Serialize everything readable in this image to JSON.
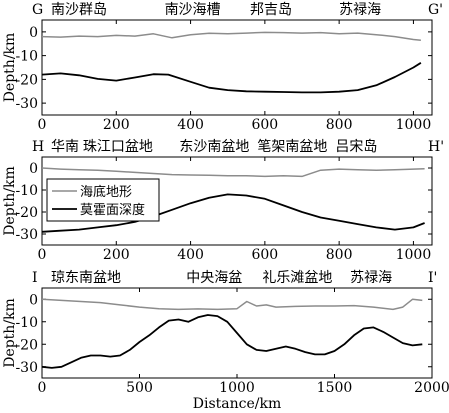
{
  "chart_data": [
    {
      "type": "line",
      "panel": "G-G'",
      "left_label": "G",
      "right_label": "G'",
      "top_labels": [
        {
          "text": "南沙群岛",
          "x": 0
        },
        {
          "text": "南沙海槽",
          "x": 330
        },
        {
          "text": "邦吉岛",
          "x": 560
        },
        {
          "text": "苏禄海",
          "x": 800
        }
      ],
      "ylabel": "Depth/km",
      "xlim": [
        0,
        1050
      ],
      "ylim": [
        -35,
        5
      ],
      "xticks": [
        0,
        200,
        400,
        600,
        800,
        1000
      ],
      "yticks": [
        0,
        -10,
        -20,
        -30
      ],
      "series": [
        {
          "color": "#8c8c8c",
          "x": [
            0,
            50,
            100,
            150,
            200,
            250,
            300,
            350,
            400,
            450,
            500,
            550,
            600,
            650,
            700,
            750,
            800,
            850,
            900,
            950,
            1000,
            1020
          ],
          "y": [
            -2,
            -2.2,
            -1.8,
            -2,
            -1.5,
            -1.8,
            -0.8,
            -2.5,
            -1.2,
            -0.6,
            -0.8,
            -0.5,
            -0.2,
            -0.3,
            -0.5,
            -0.3,
            -0.8,
            -0.5,
            -1.2,
            -2,
            -3.2,
            -3.5
          ]
        },
        {
          "color": "#000000",
          "x": [
            0,
            50,
            100,
            150,
            200,
            250,
            300,
            340,
            400,
            450,
            500,
            550,
            600,
            650,
            700,
            750,
            800,
            850,
            900,
            950,
            1000,
            1020
          ],
          "y": [
            -18,
            -17.5,
            -18.3,
            -19.8,
            -20.5,
            -19.2,
            -17.8,
            -18,
            -21,
            -23.5,
            -24.5,
            -25,
            -25.2,
            -25.3,
            -25.5,
            -25.5,
            -25.2,
            -24.5,
            -22.5,
            -19,
            -15,
            -13
          ]
        }
      ]
    },
    {
      "type": "line",
      "panel": "H-H'",
      "left_label": "H",
      "right_label": "H'",
      "top_labels": [
        {
          "text": "华南",
          "x": 0
        },
        {
          "text": "珠江口盆地",
          "x": 110
        },
        {
          "text": "东沙南盆地",
          "x": 370
        },
        {
          "text": "笔架南盆地",
          "x": 580
        },
        {
          "text": "吕宋岛",
          "x": 790
        }
      ],
      "ylabel": "Depth/km",
      "xlim": [
        0,
        1050
      ],
      "ylim": [
        -35,
        5
      ],
      "xticks": [
        0,
        200,
        400,
        600,
        800,
        1000
      ],
      "yticks": [
        0,
        -10,
        -20,
        -30
      ],
      "legend": {
        "position": "top-left",
        "entries": [
          "海底地形",
          "莫霍面深度"
        ]
      },
      "series": [
        {
          "name": "海底地形",
          "color": "#8c8c8c",
          "x": [
            0,
            50,
            100,
            150,
            200,
            250,
            300,
            350,
            400,
            450,
            500,
            550,
            600,
            650,
            700,
            750,
            800,
            850,
            900,
            950,
            1000,
            1030
          ],
          "y": [
            0,
            -0.5,
            -0.8,
            -1,
            -1.5,
            -2,
            -2.5,
            -3,
            -3.2,
            -3.3,
            -3.5,
            -3.5,
            -3.8,
            -3.5,
            -3.8,
            -1,
            -0.5,
            -0.8,
            -1,
            -0.8,
            -0.5,
            -0.3
          ]
        },
        {
          "name": "莫霍面深度",
          "color": "#000000",
          "x": [
            0,
            50,
            100,
            150,
            200,
            250,
            300,
            350,
            400,
            450,
            500,
            550,
            600,
            650,
            700,
            750,
            800,
            850,
            900,
            950,
            1000,
            1030
          ],
          "y": [
            -29,
            -28.5,
            -28,
            -27,
            -26,
            -24.5,
            -22,
            -19,
            -16,
            -13.5,
            -12,
            -12.5,
            -14,
            -17,
            -20,
            -22.5,
            -24,
            -25.5,
            -27,
            -28,
            -27,
            -25
          ]
        }
      ]
    },
    {
      "type": "line",
      "panel": "I-I'",
      "left_label": "I",
      "right_label": "I'",
      "top_labels": [
        {
          "text": "琼东南盆地",
          "x": 0
        },
        {
          "text": "中央海盆",
          "x": 740
        },
        {
          "text": "礼乐滩盆地",
          "x": 1130
        },
        {
          "text": "苏禄海",
          "x": 1580
        }
      ],
      "ylabel": "Depth/km",
      "xlabel": "Distance/km",
      "xlim": [
        0,
        2000
      ],
      "ylim": [
        -35,
        5
      ],
      "xticks": [
        0,
        500,
        1000,
        1500,
        2000
      ],
      "yticks": [
        0,
        -10,
        -20,
        -30
      ],
      "series": [
        {
          "color": "#8c8c8c",
          "x": [
            0,
            100,
            200,
            300,
            400,
            500,
            600,
            700,
            800,
            900,
            1000,
            1050,
            1100,
            1150,
            1200,
            1300,
            1400,
            1500,
            1600,
            1700,
            1800,
            1850,
            1900,
            1950
          ],
          "y": [
            0,
            -0.5,
            -1,
            -1.5,
            -2.5,
            -3.5,
            -4.2,
            -4.5,
            -4.3,
            -4.5,
            -4.2,
            -1,
            -3,
            -2.5,
            -3.5,
            -3.2,
            -3,
            -3,
            -2.8,
            -3.5,
            -4.5,
            -3.5,
            0,
            -0.5
          ]
        },
        {
          "color": "#000000",
          "x": [
            0,
            50,
            100,
            150,
            200,
            250,
            300,
            350,
            400,
            450,
            500,
            550,
            600,
            650,
            700,
            750,
            800,
            850,
            900,
            950,
            1000,
            1050,
            1100,
            1150,
            1200,
            1250,
            1300,
            1350,
            1400,
            1450,
            1500,
            1550,
            1600,
            1650,
            1700,
            1750,
            1800,
            1850,
            1900,
            1950
          ],
          "y": [
            -30,
            -30.5,
            -30,
            -28,
            -26,
            -25,
            -25,
            -25.5,
            -25,
            -22.5,
            -19,
            -16,
            -12.5,
            -9.5,
            -9,
            -10,
            -8,
            -7,
            -7.5,
            -10,
            -15,
            -20,
            -22.5,
            -23,
            -22,
            -21,
            -22,
            -23.5,
            -24.5,
            -24.5,
            -23,
            -20,
            -16,
            -13,
            -12.5,
            -14.5,
            -17,
            -19.5,
            -20.5,
            -20
          ]
        }
      ]
    }
  ]
}
